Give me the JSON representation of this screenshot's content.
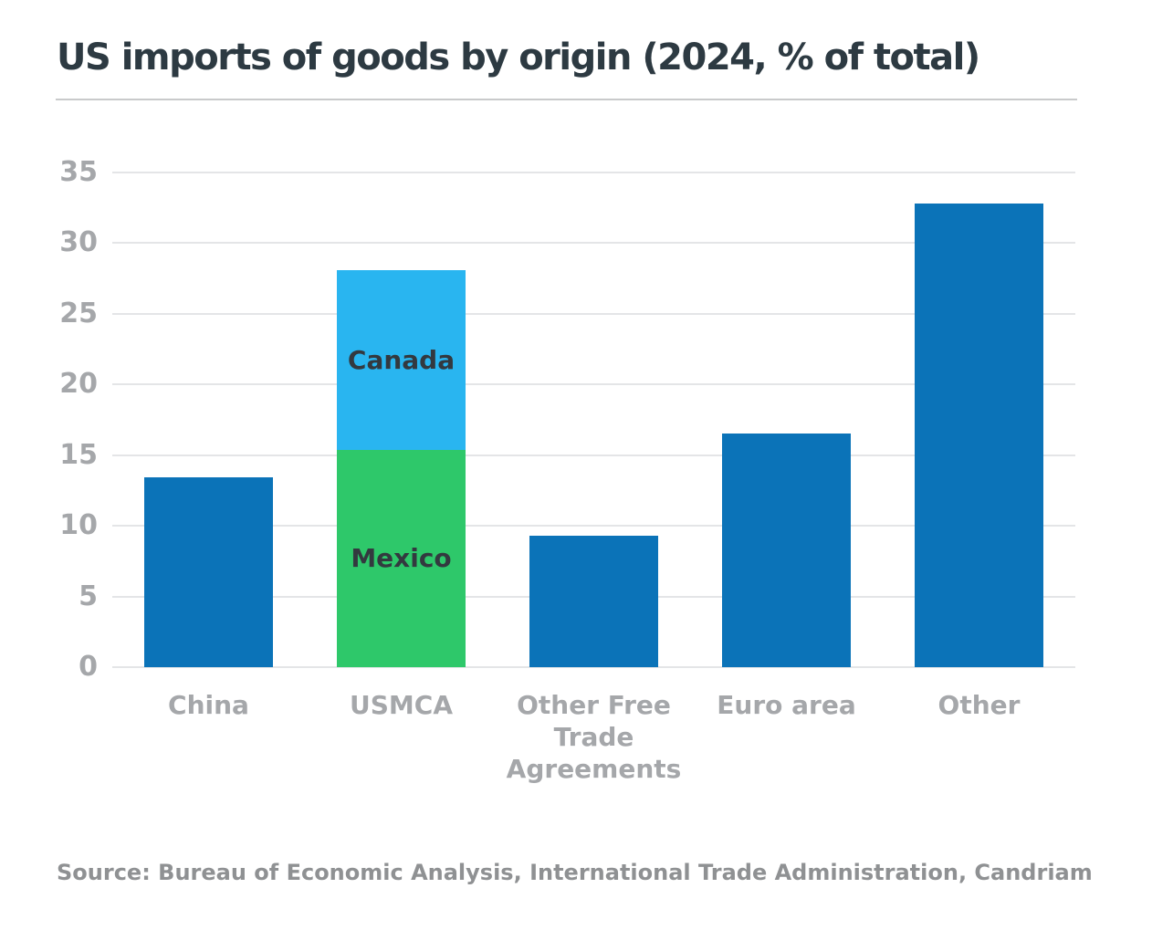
{
  "header": {
    "title": "US imports of goods by origin (2024, % of total)"
  },
  "source": {
    "text": "Source: Bureau of Economic Analysis, International Trade Administration, Candriam"
  },
  "colors": {
    "primary_blue": "#0b73b8",
    "canada_light_blue": "#29b5f0",
    "mexico_green": "#2ec86a",
    "title_text": "#2d3a42",
    "axis_text": "#a5a7aa",
    "segment_label_text": "#33393f",
    "gridline": "#e4e5e7",
    "divider": "#c9cacb",
    "source_text": "#8f9193"
  },
  "chart_data": {
    "type": "bar",
    "title": "US imports of goods by origin (2024, % of total)",
    "xlabel": "",
    "ylabel": "% of total",
    "ylim": [
      0,
      35
    ],
    "yticks": [
      0,
      5,
      10,
      15,
      20,
      25,
      30,
      35
    ],
    "grid": true,
    "legend": "none (segments labeled inline: Canada, Mexico)",
    "categories": [
      "China",
      "USMCA",
      "Other Free Trade Agreements",
      "Euro area",
      "Other"
    ],
    "bars": [
      {
        "category": "China",
        "total": 13.4,
        "segments": [
          {
            "label": "",
            "value": 13.4,
            "color": "#0b73b8"
          }
        ]
      },
      {
        "category": "USMCA",
        "total": 28.1,
        "segments": [
          {
            "label": "Mexico",
            "value": 15.4,
            "color": "#2ec86a"
          },
          {
            "label": "Canada",
            "value": 12.7,
            "color": "#29b5f0"
          }
        ]
      },
      {
        "category": "Other Free Trade Agreements",
        "total": 9.3,
        "segments": [
          {
            "label": "",
            "value": 9.3,
            "color": "#0b73b8"
          }
        ]
      },
      {
        "category": "Euro area",
        "total": 16.5,
        "segments": [
          {
            "label": "",
            "value": 16.5,
            "color": "#0b73b8"
          }
        ]
      },
      {
        "category": "Other",
        "total": 32.8,
        "segments": [
          {
            "label": "",
            "value": 32.8,
            "color": "#0b73b8"
          }
        ]
      }
    ]
  }
}
